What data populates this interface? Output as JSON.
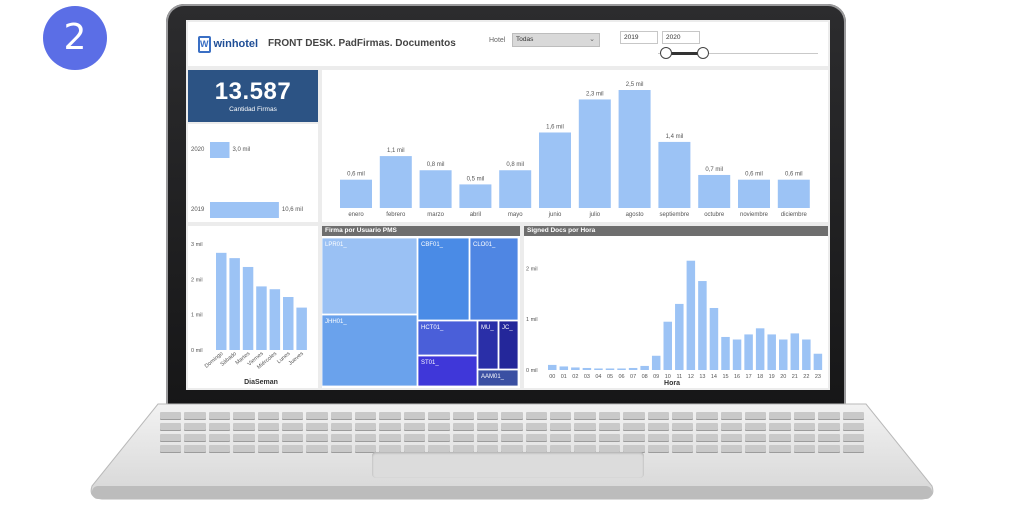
{
  "badge": "2",
  "header": {
    "logo_mark": "W",
    "logo_text": "winhotel",
    "title": "FRONT DESK. PadFirmas. Documentos",
    "hotel_label": "Hotel",
    "hotel_value": "Todas",
    "year_from": "2019",
    "year_to": "2020"
  },
  "kpi": {
    "value": "13.587",
    "label": "Cantidad Firmas"
  },
  "colors": {
    "bar": "#9cc3f5",
    "kpi_bg": "#2c5384",
    "badge": "#5b6ee6"
  },
  "chart_data": [
    {
      "type": "bar",
      "orientation": "horizontal",
      "categories": [
        "2020",
        "2019"
      ],
      "values": [
        3.0,
        10.6
      ],
      "value_labels": [
        "3,0 mil",
        "10,6 mil"
      ]
    },
    {
      "type": "bar",
      "categories": [
        "enero",
        "febrero",
        "marzo",
        "abril",
        "mayo",
        "junio",
        "julio",
        "agosto",
        "septiembre",
        "octubre",
        "noviembre",
        "diciembre"
      ],
      "values": [
        0.6,
        1.1,
        0.8,
        0.5,
        0.8,
        1.6,
        2.3,
        2.5,
        1.4,
        0.7,
        0.6,
        0.6
      ],
      "value_labels": [
        "0,6 mil",
        "1,1 mil",
        "0,8 mil",
        "0,5 mil",
        "0,8 mil",
        "1,6 mil",
        "2,3 mil",
        "2,5 mil",
        "1,4 mil",
        "0,7 mil",
        "0,6 mil",
        "0,6 mil"
      ]
    },
    {
      "type": "bar",
      "categories": [
        "Domingo",
        "Sábado",
        "Martes",
        "Viernes",
        "Miércoles",
        "Lunes",
        "Jueves"
      ],
      "values": [
        2.75,
        2.6,
        2.35,
        1.8,
        1.72,
        1.5,
        1.2
      ],
      "xlabel": "DiaSeman",
      "yticks": [
        "0 mil",
        "1 mil",
        "2 mil",
        "3 mil"
      ],
      "ylim": [
        0,
        3
      ]
    },
    {
      "type": "treemap",
      "title": "Firma por Usuario PMS",
      "items": [
        "LPR01_",
        "CBF01_",
        "CLO01_",
        "JHH01_",
        "HCT01_",
        "MU_",
        "JC_",
        "ST01_",
        "AAM01_"
      ]
    },
    {
      "type": "bar",
      "title": "Signed Docs por Hora",
      "categories": [
        "00",
        "01",
        "02",
        "03",
        "04",
        "05",
        "06",
        "07",
        "08",
        "09",
        "10",
        "11",
        "12",
        "13",
        "14",
        "15",
        "16",
        "17",
        "18",
        "19",
        "20",
        "21",
        "22",
        "23"
      ],
      "values": [
        0.1,
        0.07,
        0.05,
        0.04,
        0.03,
        0.03,
        0.03,
        0.04,
        0.08,
        0.28,
        0.95,
        1.3,
        2.15,
        1.75,
        1.22,
        0.65,
        0.6,
        0.7,
        0.82,
        0.7,
        0.6,
        0.72,
        0.6,
        0.32
      ],
      "xlabel": "Hora",
      "yticks": [
        "0 mil",
        "1 mil",
        "2 mil"
      ],
      "ylim": [
        0,
        2.4
      ]
    }
  ]
}
